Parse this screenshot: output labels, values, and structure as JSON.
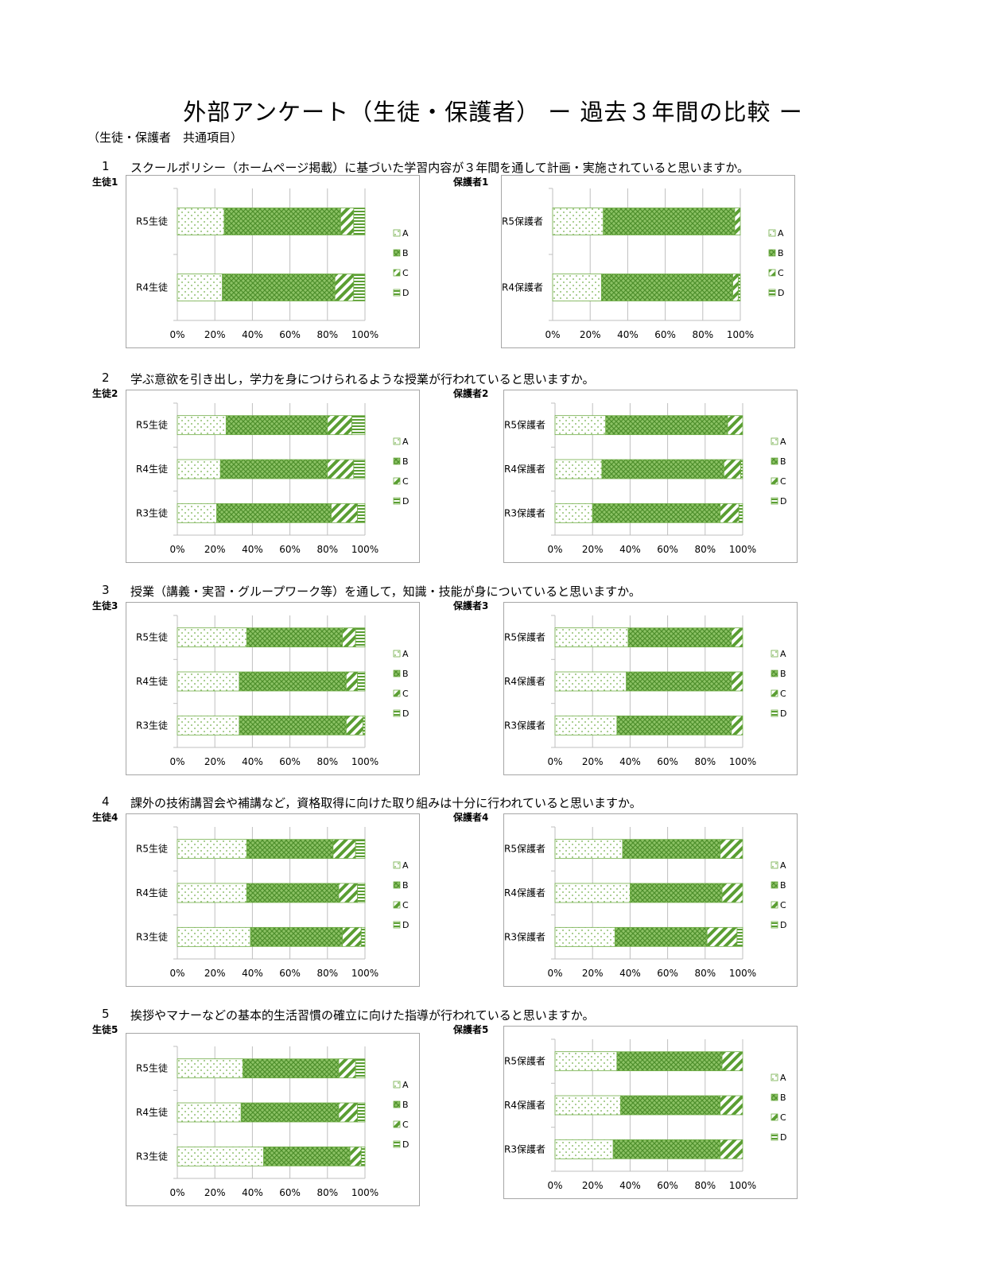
{
  "page": {
    "title": "外部アンケート（生徒・保護者） ー 過去３年間の比較 ー",
    "subtitle": "（生徒・保護者　共通項目）"
  },
  "legend": [
    "A",
    "B",
    "C",
    "D"
  ],
  "x_ticks": [
    "0%",
    "20%",
    "40%",
    "60%",
    "80%",
    "100%"
  ],
  "questions": [
    {
      "num": "1",
      "text": "スクールポリシー（ホームページ掲載）に基づいた学習内容が３年間を通して計画・実施されていると思いますか。"
    },
    {
      "num": "2",
      "text": "学ぶ意欲を引き出し，学力を身につけられるような授業が行われていると思いますか。"
    },
    {
      "num": "3",
      "text": "授業（講義・実習・グループワーク等）を通して，知識・技能が身についていると思いますか。"
    },
    {
      "num": "4",
      "text": "課外の技術講習会や補講など，資格取得に向けた取り組みは十分に行われていると思いますか。"
    },
    {
      "num": "5",
      "text": "挨拶やマナーなどの基本的生活習慣の確立に向けた指導が行われていると思いますか。"
    }
  ],
  "chart_data": [
    {
      "type": "bar",
      "stacked": true,
      "orientation": "horizontal",
      "label": "生徒1",
      "xlim": [
        0,
        100
      ],
      "categories": [
        "R5生徒",
        "R4生徒"
      ],
      "series": [
        {
          "name": "A",
          "values": [
            25,
            24
          ]
        },
        {
          "name": "B",
          "values": [
            62,
            60
          ]
        },
        {
          "name": "C",
          "values": [
            7,
            10
          ]
        },
        {
          "name": "D",
          "values": [
            6,
            6
          ]
        }
      ]
    },
    {
      "type": "bar",
      "stacked": true,
      "orientation": "horizontal",
      "label": "保護者1",
      "xlim": [
        0,
        100
      ],
      "categories": [
        "R5保護者",
        "R4保護者"
      ],
      "series": [
        {
          "name": "A",
          "values": [
            27,
            26
          ]
        },
        {
          "name": "B",
          "values": [
            70,
            70
          ]
        },
        {
          "name": "C",
          "values": [
            3,
            3
          ]
        },
        {
          "name": "D",
          "values": [
            0,
            1
          ]
        }
      ]
    },
    {
      "type": "bar",
      "stacked": true,
      "orientation": "horizontal",
      "label": "生徒2",
      "xlim": [
        0,
        100
      ],
      "categories": [
        "R5生徒",
        "R4生徒",
        "R3生徒"
      ],
      "series": [
        {
          "name": "A",
          "values": [
            26,
            23,
            21
          ]
        },
        {
          "name": "B",
          "values": [
            54,
            57,
            61
          ]
        },
        {
          "name": "C",
          "values": [
            13,
            14,
            14
          ]
        },
        {
          "name": "D",
          "values": [
            7,
            6,
            4
          ]
        }
      ]
    },
    {
      "type": "bar",
      "stacked": true,
      "orientation": "horizontal",
      "label": "保護者2",
      "xlim": [
        0,
        100
      ],
      "categories": [
        "R5保護者",
        "R4保護者",
        "R3保護者"
      ],
      "series": [
        {
          "name": "A",
          "values": [
            27,
            25,
            20
          ]
        },
        {
          "name": "B",
          "values": [
            65,
            65,
            68
          ]
        },
        {
          "name": "C",
          "values": [
            8,
            9,
            10
          ]
        },
        {
          "name": "D",
          "values": [
            0,
            1,
            2
          ]
        }
      ]
    },
    {
      "type": "bar",
      "stacked": true,
      "orientation": "horizontal",
      "label": "生徒3",
      "xlim": [
        0,
        100
      ],
      "categories": [
        "R5生徒",
        "R4生徒",
        "R3生徒"
      ],
      "series": [
        {
          "name": "A",
          "values": [
            37,
            33,
            33
          ]
        },
        {
          "name": "B",
          "values": [
            51,
            57,
            57
          ]
        },
        {
          "name": "C",
          "values": [
            7,
            6,
            9
          ]
        },
        {
          "name": "D",
          "values": [
            5,
            4,
            1
          ]
        }
      ]
    },
    {
      "type": "bar",
      "stacked": true,
      "orientation": "horizontal",
      "label": "保護者3",
      "xlim": [
        0,
        100
      ],
      "categories": [
        "R5保護者",
        "R4保護者",
        "R3保護者"
      ],
      "series": [
        {
          "name": "A",
          "values": [
            39,
            38,
            33
          ]
        },
        {
          "name": "B",
          "values": [
            55,
            56,
            61
          ]
        },
        {
          "name": "C",
          "values": [
            6,
            6,
            6
          ]
        },
        {
          "name": "D",
          "values": [
            0,
            0,
            0
          ]
        }
      ]
    },
    {
      "type": "bar",
      "stacked": true,
      "orientation": "horizontal",
      "label": "生徒4",
      "xlim": [
        0,
        100
      ],
      "categories": [
        "R5生徒",
        "R4生徒",
        "R3生徒"
      ],
      "series": [
        {
          "name": "A",
          "values": [
            37,
            37,
            39
          ]
        },
        {
          "name": "B",
          "values": [
            46,
            49,
            49
          ]
        },
        {
          "name": "C",
          "values": [
            12,
            10,
            10
          ]
        },
        {
          "name": "D",
          "values": [
            5,
            4,
            2
          ]
        }
      ]
    },
    {
      "type": "bar",
      "stacked": true,
      "orientation": "horizontal",
      "label": "保護者4",
      "xlim": [
        0,
        100
      ],
      "categories": [
        "R5保護者",
        "R4保護者",
        "R3保護者"
      ],
      "series": [
        {
          "name": "A",
          "values": [
            36,
            40,
            32
          ]
        },
        {
          "name": "B",
          "values": [
            52,
            49,
            49
          ]
        },
        {
          "name": "C",
          "values": [
            12,
            11,
            16
          ]
        },
        {
          "name": "D",
          "values": [
            0,
            0,
            3
          ]
        }
      ]
    },
    {
      "type": "bar",
      "stacked": true,
      "orientation": "horizontal",
      "label": "生徒5",
      "xlim": [
        0,
        100
      ],
      "categories": [
        "R5生徒",
        "R4生徒",
        "R3生徒"
      ],
      "series": [
        {
          "name": "A",
          "values": [
            35,
            34,
            46
          ]
        },
        {
          "name": "B",
          "values": [
            51,
            52,
            46
          ]
        },
        {
          "name": "C",
          "values": [
            9,
            10,
            6
          ]
        },
        {
          "name": "D",
          "values": [
            5,
            4,
            2
          ]
        }
      ]
    },
    {
      "type": "bar",
      "stacked": true,
      "orientation": "horizontal",
      "label": "保護者5",
      "xlim": [
        0,
        100
      ],
      "categories": [
        "R5保護者",
        "R4保護者",
        "R3保護者"
      ],
      "series": [
        {
          "name": "A",
          "values": [
            33,
            35,
            31
          ]
        },
        {
          "name": "B",
          "values": [
            56,
            53,
            57
          ]
        },
        {
          "name": "C",
          "values": [
            11,
            12,
            12
          ]
        },
        {
          "name": "D",
          "values": [
            0,
            0,
            0
          ]
        }
      ]
    }
  ]
}
